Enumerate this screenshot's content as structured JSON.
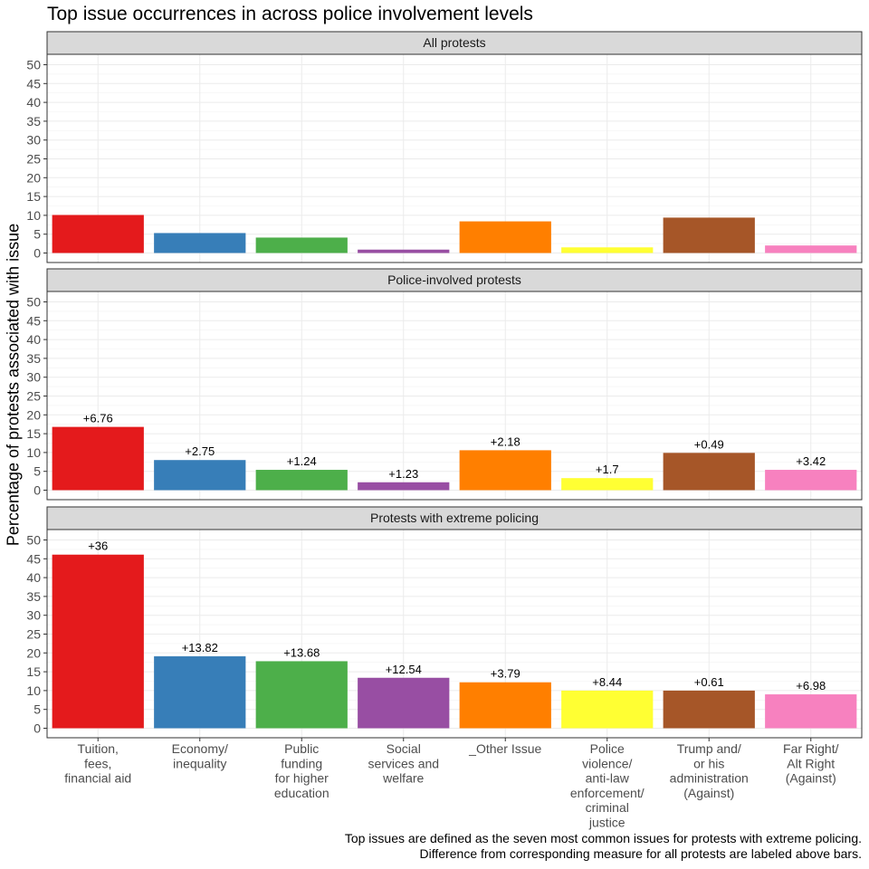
{
  "chart_data": {
    "type": "bar",
    "title": "Top issue occurrences in across police involvement levels",
    "ylabel": "Percentage of protests associated with issue",
    "xlabel": "",
    "ylim": [
      0,
      52
    ],
    "yticks": [
      0,
      5,
      10,
      15,
      20,
      25,
      30,
      35,
      40,
      45,
      50
    ],
    "categories": [
      "Tuition,\nfees,\nfinancial aid",
      "Economy/\ninequality",
      "Public\nfunding\nfor higher\neducation",
      "Social\nservices and\nwelfare",
      "_Other Issue",
      "Police\nviolence/\nanti-law\nenforcement/\ncriminal\njustice",
      "Trump and/\nor his\nadministration\n(Against)",
      "Far Right/\nAlt Right\n(Against)"
    ],
    "colors": [
      "#e41a1c",
      "#377eb8",
      "#4daf4a",
      "#984ea3",
      "#ff7f00",
      "#ffff33",
      "#a65628",
      "#f781bf"
    ],
    "facets": [
      {
        "name": "All protests",
        "values": [
          10.1,
          5.3,
          4.1,
          0.9,
          8.4,
          1.5,
          9.4,
          2.0
        ],
        "labels": [
          "",
          "",
          "",
          "",
          "",
          "",
          "",
          ""
        ]
      },
      {
        "name": "Police-involved protests",
        "values": [
          16.8,
          8.0,
          5.4,
          2.1,
          10.6,
          3.2,
          9.9,
          5.4
        ],
        "labels": [
          "+6.76",
          "+2.75",
          "+1.24",
          "+1.23",
          "+2.18",
          "+1.7",
          "+0.49",
          "+3.42"
        ]
      },
      {
        "name": "Protests with extreme policing",
        "values": [
          46.1,
          19.1,
          17.8,
          13.4,
          12.2,
          10.0,
          10.0,
          9.0
        ],
        "labels": [
          "+36",
          "+13.82",
          "+13.68",
          "+12.54",
          "+3.79",
          "+8.44",
          "+0.61",
          "+6.98"
        ]
      }
    ],
    "grid": true,
    "legend": "none"
  },
  "caption": {
    "line1": "Top issues are defined as the seven most common issues for protests with extreme policing.",
    "line2": "Difference from corresponding measure for all protests are labeled above bars."
  }
}
